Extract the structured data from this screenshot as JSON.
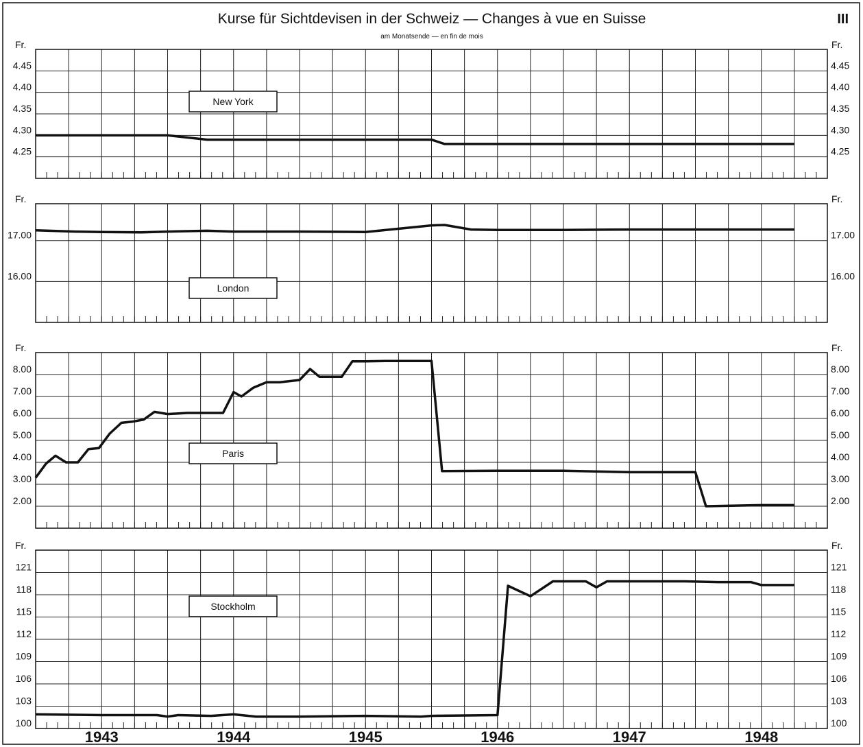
{
  "title": "Kurse für Sichtdevisen in der Schweiz — Changes à vue en Suisse",
  "subtitle": "am Monatsende — en fin de mois",
  "page_number": "III",
  "chart_data": [
    {
      "type": "line",
      "label": "New York",
      "unit": "Fr.",
      "ylim": [
        4.2,
        4.5
      ],
      "yticks": [
        "4.45",
        "4.40",
        "4.35",
        "4.30",
        "4.25"
      ],
      "ytick_values": [
        4.45,
        4.4,
        4.35,
        4.3,
        4.25
      ],
      "grid": true,
      "x": [
        1942.5,
        1943.0,
        1943.5,
        1943.8,
        1944.0,
        1944.5,
        1945.0,
        1945.5,
        1945.6,
        1946.0,
        1946.5,
        1947.0,
        1947.5,
        1948.0,
        1948.25
      ],
      "values": [
        4.3,
        4.3,
        4.3,
        4.29,
        4.29,
        4.29,
        4.29,
        4.29,
        4.28,
        4.28,
        4.28,
        4.28,
        4.28,
        4.28,
        4.28
      ]
    },
    {
      "type": "line",
      "label": "London",
      "unit": "Fr.",
      "ylim": [
        15.0,
        17.9
      ],
      "yticks": [
        "17.00",
        "16.00"
      ],
      "ytick_values": [
        17.0,
        16.0
      ],
      "grid": true,
      "x": [
        1942.5,
        1942.8,
        1943.0,
        1943.3,
        1943.5,
        1943.8,
        1944.0,
        1944.5,
        1945.0,
        1945.5,
        1945.6,
        1945.8,
        1946.0,
        1946.5,
        1947.0,
        1947.5,
        1948.0,
        1948.25
      ],
      "values": [
        17.25,
        17.22,
        17.21,
        17.2,
        17.22,
        17.24,
        17.22,
        17.22,
        17.21,
        17.37,
        17.38,
        17.27,
        17.26,
        17.26,
        17.27,
        17.27,
        17.27,
        17.27
      ]
    },
    {
      "type": "line",
      "label": "Paris",
      "unit": "Fr.",
      "ylim": [
        1.0,
        9.0
      ],
      "yticks": [
        "8.00",
        "7.00",
        "6.00",
        "5.00",
        "4.00",
        "3.00",
        "2.00"
      ],
      "ytick_values": [
        8,
        7,
        6,
        5,
        4,
        3,
        2
      ],
      "grid": true,
      "x": [
        1942.5,
        1942.58,
        1942.65,
        1942.73,
        1942.82,
        1942.9,
        1942.98,
        1943.06,
        1943.15,
        1943.23,
        1943.32,
        1943.4,
        1943.5,
        1943.65,
        1943.75,
        1943.92,
        1944.0,
        1944.06,
        1944.15,
        1944.25,
        1944.35,
        1944.5,
        1944.58,
        1944.65,
        1944.82,
        1944.9,
        1945.0,
        1945.15,
        1945.35,
        1945.5,
        1945.58,
        1946.0,
        1946.5,
        1947.0,
        1947.5,
        1947.58,
        1948.0,
        1948.25
      ],
      "values": [
        3.3,
        3.95,
        4.3,
        4.0,
        4.0,
        4.6,
        4.65,
        5.3,
        5.8,
        5.85,
        5.95,
        6.3,
        6.2,
        6.25,
        6.25,
        6.25,
        7.2,
        7.0,
        7.4,
        7.65,
        7.65,
        7.75,
        8.25,
        7.9,
        7.9,
        8.6,
        8.6,
        8.62,
        8.62,
        8.62,
        3.6,
        3.62,
        3.62,
        3.55,
        3.55,
        2.0,
        2.05,
        2.05
      ]
    },
    {
      "type": "line",
      "label": "Stockholm",
      "unit": "Fr.",
      "ylim": [
        100,
        124
      ],
      "yticks": [
        "121",
        "118",
        "115",
        "112",
        "109",
        "106",
        "103",
        "100"
      ],
      "ytick_values": [
        121,
        118,
        115,
        112,
        109,
        106,
        103,
        100
      ],
      "grid": true,
      "x": [
        1942.5,
        1943.0,
        1943.42,
        1943.5,
        1943.58,
        1943.83,
        1944.0,
        1944.17,
        1944.5,
        1945.0,
        1945.42,
        1945.5,
        1946.0,
        1946.08,
        1946.25,
        1946.42,
        1946.67,
        1946.75,
        1946.83,
        1947.0,
        1947.42,
        1947.67,
        1947.92,
        1948.0,
        1948.25
      ],
      "values": [
        101.9,
        101.8,
        101.8,
        101.6,
        101.8,
        101.7,
        101.9,
        101.6,
        101.6,
        101.7,
        101.6,
        101.7,
        101.8,
        119.2,
        117.8,
        119.8,
        119.8,
        119.0,
        119.8,
        119.8,
        119.8,
        119.7,
        119.7,
        119.3,
        119.3
      ]
    }
  ],
  "x_axis": {
    "range": [
      1942.5,
      1948.5
    ],
    "year_labels": [
      "1943",
      "1944",
      "1945",
      "1946",
      "1947",
      "1948"
    ],
    "year_positions": [
      1943,
      1944,
      1945,
      1946,
      1947,
      1948
    ]
  }
}
